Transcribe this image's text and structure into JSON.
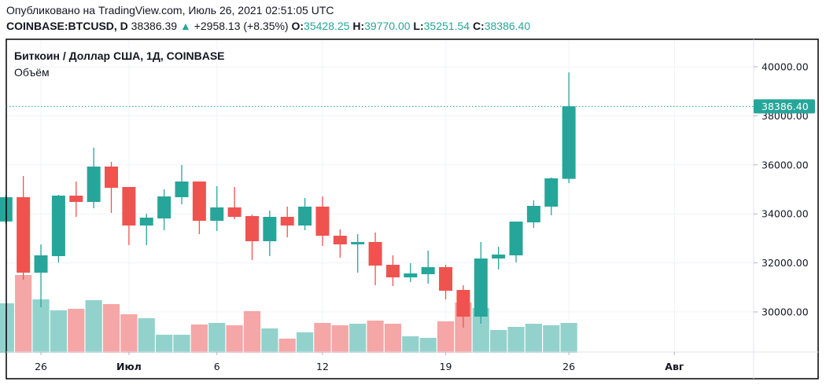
{
  "header": {
    "published": "Опубликовано на TradingView.com, Июль 26, 2021 02:51:05 UTC",
    "symbol": "COINBASE:BTCUSD, D",
    "last": "38386.39",
    "change": "+2958.13 (+8.35%)",
    "o_label": "O:",
    "o": "35428.25",
    "h_label": "H:",
    "h": "39770.00",
    "l_label": "L:",
    "l": "35251.54",
    "c_label": "C:",
    "c": "38386.40",
    "up_icon": "triangle-up-icon"
  },
  "pane": {
    "title": "Биткоин / Доллар США, 1Д, COINBASE",
    "indicator": "Объём"
  },
  "colors": {
    "up": "#26a69a",
    "down": "#ef5350",
    "up_vol": "#93d2cc",
    "down_vol": "#f5a6a6",
    "grid": "#f0f3fa",
    "text": "#131722"
  },
  "chart_data": {
    "type": "candlestick",
    "ylim": [
      28500,
      41000
    ],
    "y_ticks": [
      "30000.00",
      "32000.00",
      "34000.00",
      "36000.00",
      "38000.00",
      "40000.00"
    ],
    "last_price_label": "38386.40",
    "last_price": 38386.4,
    "x_ticks": [
      {
        "label": "26",
        "date": "2021-06-26",
        "bold": false
      },
      {
        "label": "Июл",
        "date": "2021-07-01",
        "bold": true
      },
      {
        "label": "6",
        "date": "2021-07-06",
        "bold": false
      },
      {
        "label": "12",
        "date": "2021-07-12",
        "bold": false
      },
      {
        "label": "19",
        "date": "2021-07-19",
        "bold": false
      },
      {
        "label": "26",
        "date": "2021-07-26",
        "bold": false
      },
      {
        "label": "Авг",
        "date": "2021-08-01",
        "bold": true
      }
    ],
    "start_date": "2021-06-24",
    "candles": [
      {
        "d": "2021-06-24",
        "o": 33690,
        "h": 34750,
        "l": 33600,
        "c": 34680,
        "v": 63
      },
      {
        "d": "2021-06-25",
        "o": 34680,
        "h": 35545,
        "l": 31314,
        "c": 31600,
        "v": 99
      },
      {
        "d": "2021-06-26",
        "o": 31600,
        "h": 32756,
        "l": 30192,
        "c": 32308,
        "v": 68
      },
      {
        "d": "2021-06-27",
        "o": 32276,
        "h": 34775,
        "l": 32019,
        "c": 34744,
        "v": 54
      },
      {
        "d": "2021-06-28",
        "o": 34744,
        "h": 35320,
        "l": 33878,
        "c": 34487,
        "v": 56
      },
      {
        "d": "2021-06-29",
        "o": 34487,
        "h": 36700,
        "l": 34231,
        "c": 35930,
        "v": 67
      },
      {
        "d": "2021-06-30",
        "o": 35930,
        "h": 36122,
        "l": 34038,
        "c": 35064,
        "v": 62
      },
      {
        "d": "2021-07-01",
        "o": 35096,
        "h": 35096,
        "l": 32724,
        "c": 33526,
        "v": 49
      },
      {
        "d": "2021-07-02",
        "o": 33526,
        "h": 34006,
        "l": 32724,
        "c": 33846,
        "v": 44
      },
      {
        "d": "2021-07-03",
        "o": 33814,
        "h": 35000,
        "l": 33333,
        "c": 34712,
        "v": 23
      },
      {
        "d": "2021-07-04",
        "o": 34680,
        "h": 35994,
        "l": 34391,
        "c": 35320,
        "v": 23
      },
      {
        "d": "2021-07-05",
        "o": 35320,
        "h": 35320,
        "l": 33173,
        "c": 33718,
        "v": 36
      },
      {
        "d": "2021-07-06",
        "o": 33718,
        "h": 35128,
        "l": 33301,
        "c": 34263,
        "v": 38
      },
      {
        "d": "2021-07-07",
        "o": 34263,
        "h": 35096,
        "l": 33782,
        "c": 33878,
        "v": 35
      },
      {
        "d": "2021-07-08",
        "o": 33910,
        "h": 33970,
        "l": 32115,
        "c": 32885,
        "v": 53
      },
      {
        "d": "2021-07-09",
        "o": 32885,
        "h": 34135,
        "l": 32276,
        "c": 33878,
        "v": 31
      },
      {
        "d": "2021-07-10",
        "o": 33878,
        "h": 34295,
        "l": 33045,
        "c": 33526,
        "v": 18
      },
      {
        "d": "2021-07-11",
        "o": 33526,
        "h": 34647,
        "l": 33333,
        "c": 34295,
        "v": 26
      },
      {
        "d": "2021-07-12",
        "o": 34295,
        "h": 34712,
        "l": 32692,
        "c": 33109,
        "v": 38
      },
      {
        "d": "2021-07-13",
        "o": 33109,
        "h": 33365,
        "l": 32212,
        "c": 32756,
        "v": 35
      },
      {
        "d": "2021-07-14",
        "o": 32756,
        "h": 33173,
        "l": 31603,
        "c": 32853,
        "v": 37
      },
      {
        "d": "2021-07-15",
        "o": 32853,
        "h": 33237,
        "l": 31090,
        "c": 31891,
        "v": 41
      },
      {
        "d": "2021-07-16",
        "o": 31923,
        "h": 32308,
        "l": 31058,
        "c": 31410,
        "v": 37
      },
      {
        "d": "2021-07-17",
        "o": 31410,
        "h": 31987,
        "l": 31218,
        "c": 31571,
        "v": 21
      },
      {
        "d": "2021-07-18",
        "o": 31538,
        "h": 32500,
        "l": 31154,
        "c": 31827,
        "v": 19
      },
      {
        "d": "2021-07-19",
        "o": 31827,
        "h": 31923,
        "l": 30513,
        "c": 30865,
        "v": 40
      },
      {
        "d": "2021-07-20",
        "o": 30897,
        "h": 31090,
        "l": 29359,
        "c": 29808,
        "v": 64
      },
      {
        "d": "2021-07-21",
        "o": 29808,
        "h": 32853,
        "l": 29519,
        "c": 32179,
        "v": 57
      },
      {
        "d": "2021-07-22",
        "o": 32179,
        "h": 32660,
        "l": 31731,
        "c": 32340,
        "v": 29
      },
      {
        "d": "2021-07-23",
        "o": 32308,
        "h": 33686,
        "l": 32019,
        "c": 33686,
        "v": 33
      },
      {
        "d": "2021-07-24",
        "o": 33654,
        "h": 34551,
        "l": 33429,
        "c": 34327,
        "v": 37
      },
      {
        "d": "2021-07-25",
        "o": 34295,
        "h": 35480,
        "l": 33942,
        "c": 35449,
        "v": 35
      },
      {
        "d": "2021-07-26",
        "o": 35428.25,
        "h": 39770.0,
        "l": 35251.54,
        "c": 38386.4,
        "v": 38
      }
    ]
  }
}
